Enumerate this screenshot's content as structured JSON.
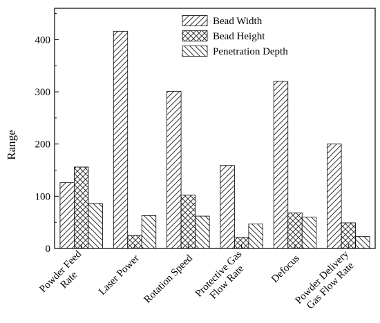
{
  "chart_data": {
    "type": "bar",
    "categories": [
      [
        "Powder Feed",
        "Rate"
      ],
      [
        "Laser Power"
      ],
      [
        "Rotation Speed"
      ],
      [
        "Protective Gas",
        "Flow Rate"
      ],
      [
        "Defocus"
      ],
      [
        "Powder Delivery",
        "Gas Flow Rate"
      ]
    ],
    "series": [
      {
        "name": "Bead Width",
        "pattern": "diag-right",
        "values": [
          126,
          416,
          301,
          159,
          320,
          200
        ]
      },
      {
        "name": "Bead Height",
        "pattern": "crosshatch",
        "values": [
          156,
          25,
          102,
          21,
          68,
          49
        ]
      },
      {
        "name": "Penetration Depth",
        "pattern": "diag-left",
        "values": [
          86,
          63,
          62,
          47,
          60,
          23
        ]
      }
    ],
    "title": "",
    "xlabel": "",
    "ylabel": "Range",
    "ylim": [
      0,
      460
    ],
    "yticks": [
      0,
      100,
      200,
      300,
      400
    ],
    "grid": false,
    "legend_position": "top-right",
    "colors": {
      "bar_fill": "#ffffff",
      "stroke": "#000000",
      "hatch": "#333333"
    }
  }
}
